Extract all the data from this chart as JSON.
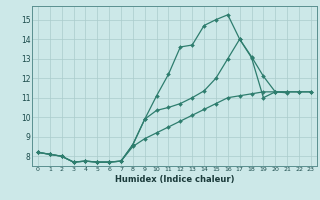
{
  "xlabel": "Humidex (Indice chaleur)",
  "background_color": "#cce8e8",
  "grid_color": "#aacccc",
  "line_color": "#2e7d6e",
  "xlim": [
    -0.5,
    23.5
  ],
  "ylim": [
    7.5,
    15.7
  ],
  "yticks": [
    8,
    9,
    10,
    11,
    12,
    13,
    14,
    15
  ],
  "xticks": [
    0,
    1,
    2,
    3,
    4,
    5,
    6,
    7,
    8,
    9,
    10,
    11,
    12,
    13,
    14,
    15,
    16,
    17,
    18,
    19,
    20,
    21,
    22,
    23
  ],
  "series1_x": [
    0,
    1,
    2,
    3,
    4,
    5,
    6,
    7,
    8,
    9,
    10,
    11,
    12,
    13,
    14,
    15,
    16,
    17,
    18,
    19,
    20,
    21
  ],
  "series1_y": [
    8.2,
    8.1,
    8.0,
    7.7,
    7.75,
    7.7,
    7.7,
    7.75,
    8.6,
    9.9,
    11.1,
    12.2,
    13.6,
    13.7,
    14.7,
    15.0,
    15.25,
    14.0,
    13.1,
    12.1,
    11.3,
    11.25
  ],
  "series2_x": [
    0,
    1,
    2,
    3,
    4,
    5,
    6,
    7,
    8,
    9,
    10,
    11,
    12,
    13,
    14,
    15,
    16,
    17,
    18,
    19,
    20,
    21,
    22,
    23
  ],
  "series2_y": [
    8.2,
    8.1,
    8.0,
    7.7,
    7.75,
    7.7,
    7.7,
    7.75,
    8.6,
    9.9,
    10.35,
    10.5,
    10.7,
    11.0,
    11.35,
    12.0,
    13.0,
    14.0,
    13.05,
    11.0,
    11.3,
    11.3,
    11.3,
    11.3
  ],
  "series3_x": [
    0,
    1,
    2,
    3,
    4,
    5,
    6,
    7,
    8,
    9,
    10,
    11,
    12,
    13,
    14,
    15,
    16,
    17,
    18,
    19,
    20,
    21,
    22,
    23
  ],
  "series3_y": [
    8.2,
    8.1,
    8.0,
    7.7,
    7.75,
    7.7,
    7.7,
    7.75,
    8.5,
    8.9,
    9.2,
    9.5,
    9.8,
    10.1,
    10.4,
    10.7,
    11.0,
    11.1,
    11.2,
    11.3,
    11.3,
    11.3,
    11.3,
    11.3
  ]
}
